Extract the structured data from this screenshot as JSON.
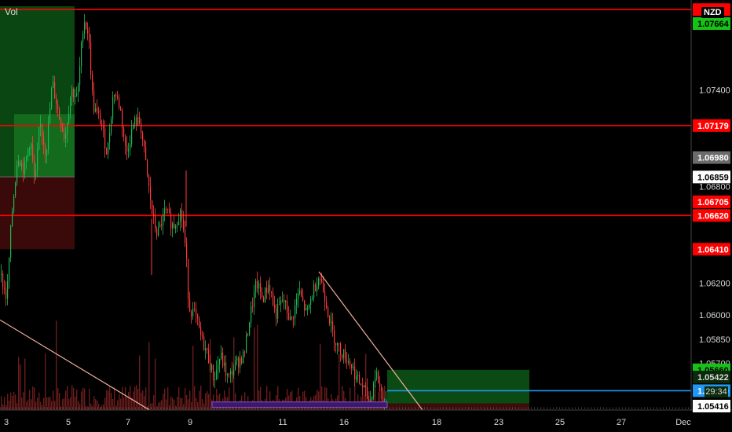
{
  "chart": {
    "symbol": "NZD",
    "vol_label": "Vol",
    "countdown": "29:34"
  },
  "chart_data": {
    "type": "candlestick",
    "ylim": [
      1.0541,
      1.0795
    ],
    "x_ticks": [
      "3",
      "5",
      "7",
      "9",
      "11",
      "16",
      "18",
      "23",
      "25",
      "27",
      "Dec",
      "3"
    ],
    "y_ticks": [
      "1.07400",
      "1.06800",
      "1.06200",
      "1.06000",
      "1.05850",
      "1.05700"
    ],
    "price_tags": [
      {
        "value": "1.07664",
        "bg": "#17c217",
        "fg": "#000000"
      },
      {
        "value": "1.07179",
        "bg": "#ff0000",
        "fg": "#ffffff"
      },
      {
        "value": "1.06980",
        "bg": "#6b6b6b",
        "fg": "#ffffff"
      },
      {
        "value": "1.06859",
        "bg": "#ffffff",
        "fg": "#000000"
      },
      {
        "value": "1.06705",
        "bg": "#ff0000",
        "fg": "#ffffff"
      },
      {
        "value": "1.06620",
        "bg": "#ff0000",
        "fg": "#ffffff"
      },
      {
        "value": "1.06410",
        "bg": "#ff0000",
        "fg": "#ffffff"
      },
      {
        "value": "1.05660",
        "bg": "#17c217",
        "fg": "#000000"
      },
      {
        "value": "1.05530",
        "bg": "#2196f3",
        "fg": "#ffffff"
      },
      {
        "value": "1.05422",
        "bg": "#0a2a0a",
        "fg": "#d8d8d8"
      },
      {
        "value": "1.05416",
        "bg": "#ffffff",
        "fg": "#000000"
      }
    ],
    "horizontal_lines": [
      {
        "value": 1.079,
        "color": "#ff0000"
      },
      {
        "value": 1.07179,
        "color": "#ff0000"
      },
      {
        "value": 1.0662,
        "color": "#ff0000"
      },
      {
        "value": 1.0553,
        "color": "#2196f3"
      }
    ],
    "colors": {
      "up": "#26a69a",
      "down": "#ef5350",
      "candle_up_body": "#1db954",
      "candle_down_body": "#ff3b3b",
      "volume": "#7a1f1f",
      "trendline": "#f4b29a"
    }
  }
}
